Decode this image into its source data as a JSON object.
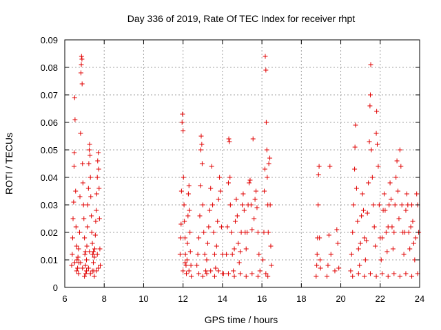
{
  "chart_data": {
    "type": "scatter",
    "title": "Day 336 of 2019, Rate Of TEC Index for receiver rhpt",
    "xlabel": "GPS time / hours",
    "ylabel": "ROTI / TECUs",
    "xlim": [
      6,
      24
    ],
    "ylim": [
      0,
      0.09
    ],
    "xticks": [
      6,
      8,
      10,
      12,
      14,
      16,
      18,
      20,
      22,
      24
    ],
    "yticks": [
      0,
      0.01,
      0.02,
      0.03,
      0.04,
      0.05,
      0.06,
      0.07,
      0.08,
      0.09
    ],
    "grid": true,
    "marker": "+",
    "series": [
      {
        "name": "ROTI",
        "color": "#e00000",
        "points": [
          [
            6.35,
            0.008
          ],
          [
            6.38,
            0.012
          ],
          [
            6.4,
            0.018
          ],
          [
            6.42,
            0.025
          ],
          [
            6.45,
            0.031
          ],
          [
            6.47,
            0.044
          ],
          [
            6.48,
            0.049
          ],
          [
            6.5,
            0.069
          ],
          [
            6.52,
            0.061
          ],
          [
            6.55,
            0.035
          ],
          [
            6.57,
            0.022
          ],
          [
            6.6,
            0.015
          ],
          [
            6.62,
            0.01
          ],
          [
            6.65,
            0.007
          ],
          [
            6.67,
            0.011
          ],
          [
            6.7,
            0.014
          ],
          [
            6.72,
            0.009
          ],
          [
            6.75,
            0.02
          ],
          [
            6.77,
            0.033
          ],
          [
            6.8,
            0.056
          ],
          [
            6.82,
            0.078
          ],
          [
            6.84,
            0.081
          ],
          [
            6.85,
            0.084
          ],
          [
            6.87,
            0.083
          ],
          [
            6.88,
            0.074
          ],
          [
            6.9,
            0.045
          ],
          [
            6.92,
            0.038
          ],
          [
            6.95,
            0.03
          ],
          [
            6.97,
            0.025
          ],
          [
            7.0,
            0.018
          ],
          [
            7.02,
            0.012
          ],
          [
            7.05,
            0.008
          ],
          [
            7.07,
            0.005
          ],
          [
            7.1,
            0.01
          ],
          [
            7.12,
            0.015
          ],
          [
            7.15,
            0.022
          ],
          [
            7.17,
            0.03
          ],
          [
            7.2,
            0.036
          ],
          [
            7.22,
            0.045
          ],
          [
            7.24,
            0.05
          ],
          [
            7.26,
            0.052
          ],
          [
            7.28,
            0.048
          ],
          [
            7.3,
            0.04
          ],
          [
            7.32,
            0.033
          ],
          [
            7.35,
            0.026
          ],
          [
            7.37,
            0.02
          ],
          [
            7.4,
            0.016
          ],
          [
            7.42,
            0.012
          ],
          [
            7.45,
            0.009
          ],
          [
            7.47,
            0.006
          ],
          [
            7.5,
            0.011
          ],
          [
            7.52,
            0.014
          ],
          [
            7.55,
            0.019
          ],
          [
            7.57,
            0.024
          ],
          [
            7.6,
            0.028
          ],
          [
            7.62,
            0.034
          ],
          [
            7.65,
            0.04
          ],
          [
            7.67,
            0.046
          ],
          [
            7.7,
            0.049
          ],
          [
            7.72,
            0.043
          ],
          [
            7.74,
            0.036
          ],
          [
            7.76,
            0.025
          ],
          [
            7.78,
            0.014
          ],
          [
            7.8,
            0.008
          ],
          [
            6.6,
            0.006
          ],
          [
            6.7,
            0.005
          ],
          [
            6.9,
            0.007
          ],
          [
            7.0,
            0.004
          ],
          [
            7.1,
            0.006
          ],
          [
            7.2,
            0.007
          ],
          [
            7.3,
            0.005
          ],
          [
            7.4,
            0.006
          ],
          [
            7.5,
            0.004
          ],
          [
            7.6,
            0.006
          ],
          [
            7.7,
            0.007
          ],
          [
            6.5,
            0.009
          ],
          [
            6.8,
            0.009
          ],
          [
            7.05,
            0.013
          ],
          [
            7.25,
            0.013
          ],
          [
            7.45,
            0.013
          ],
          [
            7.65,
            0.012
          ],
          [
            11.85,
            0.012
          ],
          [
            11.87,
            0.018
          ],
          [
            11.9,
            0.023
          ],
          [
            11.92,
            0.035
          ],
          [
            11.95,
            0.06
          ],
          [
            11.97,
            0.063
          ],
          [
            12.0,
            0.057
          ],
          [
            12.02,
            0.04
          ],
          [
            12.05,
            0.03
          ],
          [
            12.07,
            0.024
          ],
          [
            12.1,
            0.018
          ],
          [
            12.12,
            0.012
          ],
          [
            12.15,
            0.008
          ],
          [
            12.17,
            0.005
          ],
          [
            12.2,
            0.01
          ],
          [
            12.22,
            0.016
          ],
          [
            12.25,
            0.026
          ],
          [
            12.27,
            0.034
          ],
          [
            12.3,
            0.037
          ],
          [
            12.32,
            0.028
          ],
          [
            12.35,
            0.02
          ],
          [
            12.37,
            0.013
          ],
          [
            12.4,
            0.008
          ],
          [
            12.42,
            0.004
          ],
          [
            12.0,
            0.006
          ],
          [
            12.1,
            0.009
          ],
          [
            12.3,
            0.006
          ],
          [
            12.7,
            0.008
          ],
          [
            12.75,
            0.012
          ],
          [
            12.8,
            0.018
          ],
          [
            12.85,
            0.026
          ],
          [
            12.88,
            0.037
          ],
          [
            12.9,
            0.05
          ],
          [
            12.92,
            0.055
          ],
          [
            12.95,
            0.052
          ],
          [
            12.97,
            0.045
          ],
          [
            13.0,
            0.03
          ],
          [
            13.05,
            0.02
          ],
          [
            13.1,
            0.012
          ],
          [
            13.15,
            0.006
          ],
          [
            13.2,
            0.01
          ],
          [
            13.25,
            0.016
          ],
          [
            13.3,
            0.022
          ],
          [
            13.35,
            0.028
          ],
          [
            13.4,
            0.036
          ],
          [
            13.45,
            0.044
          ],
          [
            13.5,
            0.03
          ],
          [
            13.55,
            0.02
          ],
          [
            13.6,
            0.012
          ],
          [
            13.65,
            0.007
          ],
          [
            13.7,
            0.015
          ],
          [
            13.75,
            0.024
          ],
          [
            13.8,
            0.032
          ],
          [
            13.85,
            0.04
          ],
          [
            13.9,
            0.035
          ],
          [
            13.95,
            0.022
          ],
          [
            14.0,
            0.012
          ],
          [
            14.05,
            0.005
          ],
          [
            12.8,
            0.005
          ],
          [
            13.0,
            0.004
          ],
          [
            13.2,
            0.005
          ],
          [
            13.4,
            0.006
          ],
          [
            13.6,
            0.004
          ],
          [
            13.8,
            0.006
          ],
          [
            14.0,
            0.005
          ],
          [
            14.2,
            0.012
          ],
          [
            14.25,
            0.022
          ],
          [
            14.3,
            0.038
          ],
          [
            14.32,
            0.054
          ],
          [
            14.35,
            0.053
          ],
          [
            14.38,
            0.04
          ],
          [
            14.4,
            0.03
          ],
          [
            14.45,
            0.02
          ],
          [
            14.5,
            0.012
          ],
          [
            14.55,
            0.006
          ],
          [
            14.6,
            0.014
          ],
          [
            14.65,
            0.024
          ],
          [
            14.7,
            0.032
          ],
          [
            14.75,
            0.026
          ],
          [
            14.8,
            0.016
          ],
          [
            14.85,
            0.009
          ],
          [
            14.9,
            0.013
          ],
          [
            14.95,
            0.02
          ],
          [
            15.0,
            0.03
          ],
          [
            15.05,
            0.034
          ],
          [
            15.1,
            0.028
          ],
          [
            15.15,
            0.02
          ],
          [
            15.2,
            0.014
          ],
          [
            15.25,
            0.02
          ],
          [
            15.3,
            0.03
          ],
          [
            15.35,
            0.038
          ],
          [
            15.4,
            0.039
          ],
          [
            15.45,
            0.03
          ],
          [
            15.5,
            0.021
          ],
          [
            15.55,
            0.054
          ],
          [
            15.6,
            0.025
          ],
          [
            15.65,
            0.032
          ],
          [
            15.7,
            0.035
          ],
          [
            15.75,
            0.029
          ],
          [
            15.8,
            0.02
          ],
          [
            15.85,
            0.012
          ],
          [
            15.9,
            0.006
          ],
          [
            14.3,
            0.005
          ],
          [
            14.6,
            0.004
          ],
          [
            14.9,
            0.005
          ],
          [
            15.2,
            0.004
          ],
          [
            15.5,
            0.005
          ],
          [
            15.8,
            0.004
          ],
          [
            16.05,
            0.01
          ],
          [
            16.1,
            0.02
          ],
          [
            16.12,
            0.035
          ],
          [
            16.15,
            0.043
          ],
          [
            16.17,
            0.084
          ],
          [
            16.2,
            0.079
          ],
          [
            16.22,
            0.06
          ],
          [
            16.25,
            0.05
          ],
          [
            16.27,
            0.04
          ],
          [
            16.3,
            0.03
          ],
          [
            16.32,
            0.02
          ],
          [
            16.35,
            0.045
          ],
          [
            16.4,
            0.047
          ],
          [
            16.42,
            0.03
          ],
          [
            16.45,
            0.015
          ],
          [
            16.48,
            0.008
          ],
          [
            16.2,
            0.005
          ],
          [
            16.3,
            0.004
          ],
          [
            18.75,
            0.004
          ],
          [
            18.78,
            0.008
          ],
          [
            18.8,
            0.012
          ],
          [
            18.82,
            0.018
          ],
          [
            18.85,
            0.03
          ],
          [
            18.87,
            0.041
          ],
          [
            18.9,
            0.044
          ],
          [
            18.92,
            0.018
          ],
          [
            18.95,
            0.01
          ],
          [
            18.97,
            0.007
          ],
          [
            19.3,
            0.004
          ],
          [
            19.35,
            0.008
          ],
          [
            19.4,
            0.019
          ],
          [
            19.45,
            0.044
          ],
          [
            19.5,
            0.012
          ],
          [
            19.7,
            0.006
          ],
          [
            19.8,
            0.021
          ],
          [
            19.85,
            0.016
          ],
          [
            19.9,
            0.007
          ],
          [
            20.5,
            0.006
          ],
          [
            20.55,
            0.012
          ],
          [
            20.6,
            0.02
          ],
          [
            20.65,
            0.03
          ],
          [
            20.7,
            0.043
          ],
          [
            20.72,
            0.051
          ],
          [
            20.75,
            0.059
          ],
          [
            20.8,
            0.036
          ],
          [
            20.85,
            0.024
          ],
          [
            20.9,
            0.014
          ],
          [
            20.95,
            0.008
          ],
          [
            21.0,
            0.016
          ],
          [
            21.05,
            0.026
          ],
          [
            21.1,
            0.034
          ],
          [
            21.15,
            0.028
          ],
          [
            21.2,
            0.018
          ],
          [
            21.25,
            0.01
          ],
          [
            21.3,
            0.017
          ],
          [
            21.35,
            0.027
          ],
          [
            21.4,
            0.038
          ],
          [
            21.45,
            0.053
          ],
          [
            21.48,
            0.066
          ],
          [
            21.5,
            0.07
          ],
          [
            21.52,
            0.081
          ],
          [
            21.55,
            0.05
          ],
          [
            21.6,
            0.04
          ],
          [
            21.65,
            0.03
          ],
          [
            21.7,
            0.022
          ],
          [
            21.75,
            0.015
          ],
          [
            21.8,
            0.056
          ],
          [
            21.82,
            0.064
          ],
          [
            21.85,
            0.052
          ],
          [
            21.9,
            0.044
          ],
          [
            21.95,
            0.03
          ],
          [
            22.0,
            0.018
          ],
          [
            22.05,
            0.01
          ],
          [
            22.1,
            0.018
          ],
          [
            22.15,
            0.028
          ],
          [
            22.2,
            0.034
          ],
          [
            22.25,
            0.028
          ],
          [
            22.3,
            0.02
          ],
          [
            22.35,
            0.013
          ],
          [
            22.4,
            0.022
          ],
          [
            22.45,
            0.03
          ],
          [
            22.5,
            0.038
          ],
          [
            22.55,
            0.032
          ],
          [
            22.6,
            0.022
          ],
          [
            22.65,
            0.014
          ],
          [
            22.7,
            0.02
          ],
          [
            22.75,
            0.03
          ],
          [
            22.8,
            0.04
          ],
          [
            22.85,
            0.046
          ],
          [
            22.9,
            0.035
          ],
          [
            22.95,
            0.025
          ],
          [
            23.0,
            0.05
          ],
          [
            23.05,
            0.044
          ],
          [
            23.1,
            0.03
          ],
          [
            23.15,
            0.02
          ],
          [
            23.2,
            0.012
          ],
          [
            23.25,
            0.02
          ],
          [
            23.3,
            0.028
          ],
          [
            23.35,
            0.034
          ],
          [
            23.4,
            0.03
          ],
          [
            23.45,
            0.02
          ],
          [
            23.5,
            0.014
          ],
          [
            23.55,
            0.022
          ],
          [
            23.6,
            0.03
          ],
          [
            23.65,
            0.024
          ],
          [
            23.7,
            0.016
          ],
          [
            23.75,
            0.01
          ],
          [
            23.8,
            0.018
          ],
          [
            23.85,
            0.034
          ],
          [
            23.9,
            0.03
          ],
          [
            23.95,
            0.02
          ],
          [
            20.6,
            0.004
          ],
          [
            20.9,
            0.005
          ],
          [
            21.2,
            0.004
          ],
          [
            21.5,
            0.005
          ],
          [
            21.8,
            0.004
          ],
          [
            22.1,
            0.005
          ],
          [
            22.4,
            0.004
          ],
          [
            22.7,
            0.005
          ],
          [
            23.0,
            0.004
          ],
          [
            23.3,
            0.005
          ],
          [
            23.6,
            0.004
          ],
          [
            23.9,
            0.005
          ]
        ]
      }
    ]
  }
}
